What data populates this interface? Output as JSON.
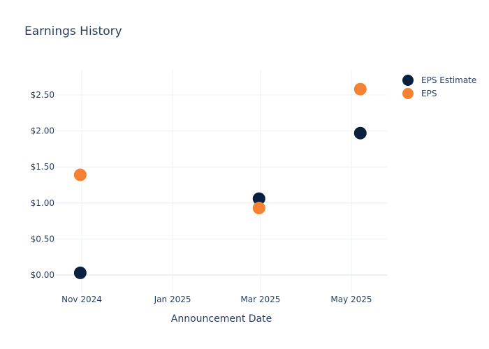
{
  "chart_data": {
    "type": "scatter",
    "title": "Earnings History",
    "xlabel": "Announcement Date",
    "ylabel": "",
    "ylim": [
      -0.2,
      2.75
    ],
    "y_ticks": [
      0,
      0.5,
      1,
      1.5,
      2,
      2.5
    ],
    "y_tick_labels": [
      "$0.00",
      "$0.50",
      "$1.00",
      "$1.50",
      "$2.00",
      "$2.50"
    ],
    "x_ticks": [
      "2024-11-01",
      "2025-01-01",
      "2025-03-01",
      "2025-05-01"
    ],
    "x_tick_labels": [
      "Nov 2024",
      "Jan 2025",
      "Mar 2025",
      "May 2025"
    ],
    "xlim": [
      "2024-10-20",
      "2025-05-28"
    ],
    "grid": true,
    "legend_position": "top-right",
    "series": [
      {
        "name": "EPS Estimate",
        "color": "#0b1f3f",
        "points": [
          {
            "x": "2024-10-31",
            "y": 0.03
          },
          {
            "x": "2025-02-28",
            "y": 1.06
          },
          {
            "x": "2025-05-07",
            "y": 1.97
          }
        ]
      },
      {
        "name": "EPS",
        "color": "#f58232",
        "points": [
          {
            "x": "2024-10-31",
            "y": 1.39
          },
          {
            "x": "2025-02-28",
            "y": 0.93
          },
          {
            "x": "2025-05-07",
            "y": 2.58
          }
        ]
      }
    ]
  }
}
